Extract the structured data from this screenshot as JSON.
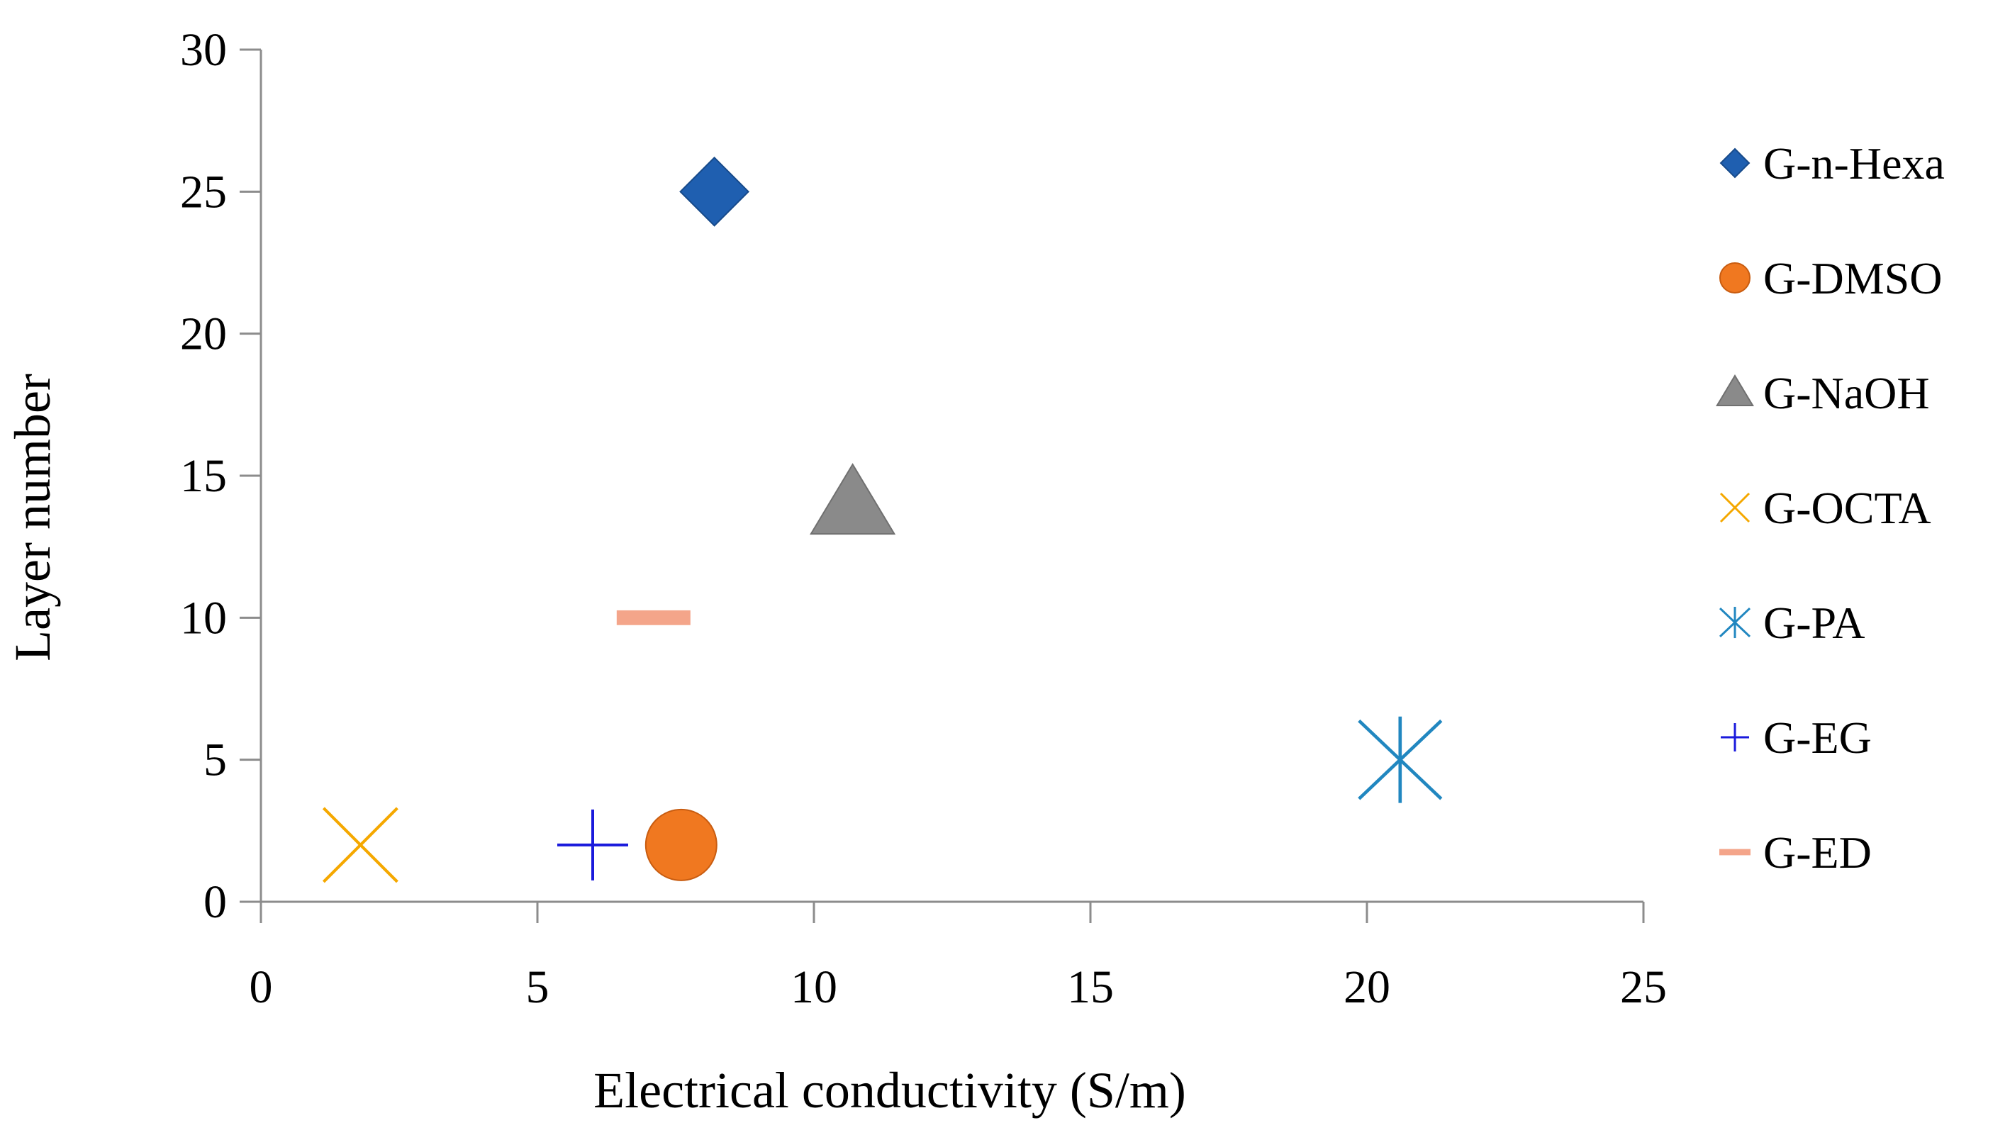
{
  "chart_data": {
    "type": "scatter",
    "title": "",
    "xlabel": "Electrical conductivity (S/m)",
    "ylabel": "Layer number",
    "xlim": [
      0,
      25
    ],
    "ylim": [
      0,
      30
    ],
    "xticks": [
      0,
      5,
      10,
      15,
      20,
      25
    ],
    "yticks": [
      0,
      5,
      10,
      15,
      20,
      25,
      30
    ],
    "grid": false,
    "legend_position": "right",
    "series": [
      {
        "name": "G-n-Hexa",
        "x": 8.2,
        "y": 25,
        "marker": "diamond",
        "color": "#1f5fb0"
      },
      {
        "name": "G-DMSO",
        "x": 7.6,
        "y": 2,
        "marker": "circle",
        "color": "#f07820"
      },
      {
        "name": "G-NaOH",
        "x": 10.7,
        "y": 14,
        "marker": "triangle",
        "color": "#8a8a8a"
      },
      {
        "name": "G-OCTA",
        "x": 1.8,
        "y": 2,
        "marker": "x",
        "color": "#f5a800"
      },
      {
        "name": "G-PA",
        "x": 20.6,
        "y": 5,
        "marker": "star",
        "color": "#2187c0"
      },
      {
        "name": "G-EG",
        "x": 6.0,
        "y": 2,
        "marker": "plus",
        "color": "#1a1adc"
      },
      {
        "name": "G-ED",
        "x": 7.1,
        "y": 10,
        "marker": "dash",
        "color": "#f4a58a"
      }
    ]
  }
}
